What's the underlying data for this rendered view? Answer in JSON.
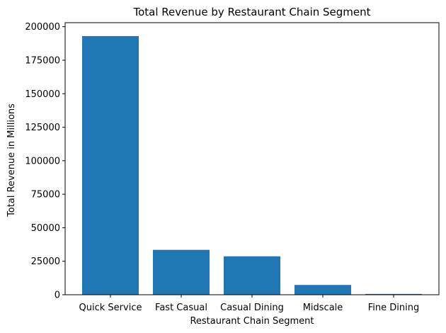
{
  "chart_data": {
    "type": "bar",
    "title": "Total Revenue by Restaurant Chain Segment",
    "xlabel": "Restaurant Chain Segment",
    "ylabel": "Total Revenue in Millions",
    "categories": [
      "Quick Service",
      "Fast Casual",
      "Casual Dining",
      "Midscale",
      "Fine Dining"
    ],
    "values": [
      193000,
      33500,
      28700,
      7300,
      600
    ],
    "ylim": [
      0,
      203000
    ],
    "yticks": [
      0,
      25000,
      50000,
      75000,
      100000,
      125000,
      150000,
      175000,
      200000
    ],
    "bar_color": "#1f77b4",
    "grid": false,
    "legend": "none"
  }
}
